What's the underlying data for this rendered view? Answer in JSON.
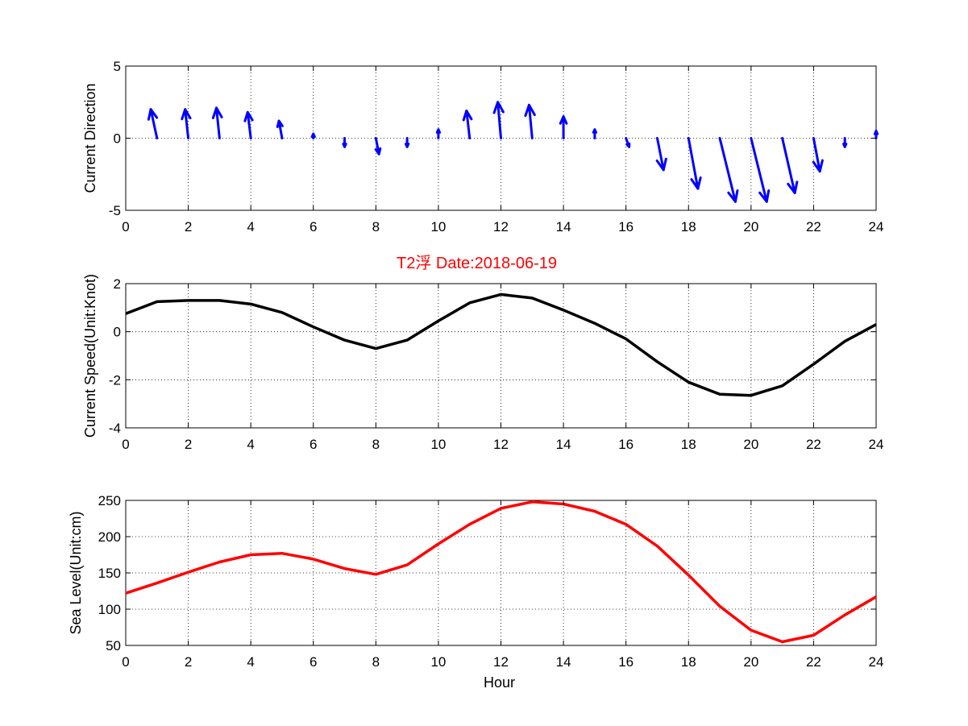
{
  "chart_data": [
    {
      "type": "quiver",
      "ylabel": "Current Direction",
      "xlabel": "",
      "xlim": [
        0,
        24
      ],
      "ylim": [
        -5,
        5
      ],
      "xticks": [
        0,
        2,
        4,
        6,
        8,
        10,
        12,
        14,
        16,
        18,
        20,
        22,
        24
      ],
      "yticks": [
        -5,
        0,
        5
      ],
      "grid": true,
      "color": "#0000ff",
      "points": [
        {
          "x": 1,
          "u": -0.2,
          "v": 2.0
        },
        {
          "x": 2,
          "u": -0.1,
          "v": 2.0
        },
        {
          "x": 3,
          "u": -0.1,
          "v": 2.1
        },
        {
          "x": 4,
          "u": -0.1,
          "v": 1.8
        },
        {
          "x": 5,
          "u": -0.1,
          "v": 1.2
        },
        {
          "x": 6,
          "u": 0.0,
          "v": 0.3
        },
        {
          "x": 7,
          "u": 0.0,
          "v": -0.6
        },
        {
          "x": 8,
          "u": 0.1,
          "v": -1.1
        },
        {
          "x": 9,
          "u": 0.0,
          "v": -0.6
        },
        {
          "x": 10,
          "u": 0.0,
          "v": 0.6
        },
        {
          "x": 11,
          "u": -0.1,
          "v": 1.9
        },
        {
          "x": 12,
          "u": -0.1,
          "v": 2.5
        },
        {
          "x": 13,
          "u": -0.1,
          "v": 2.3
        },
        {
          "x": 14,
          "u": 0.0,
          "v": 1.5
        },
        {
          "x": 15,
          "u": 0.0,
          "v": 0.6
        },
        {
          "x": 16,
          "u": 0.1,
          "v": -0.6
        },
        {
          "x": 17,
          "u": 0.2,
          "v": -2.2
        },
        {
          "x": 18,
          "u": 0.3,
          "v": -3.5
        },
        {
          "x": 19,
          "u": 0.5,
          "v": -4.4
        },
        {
          "x": 20,
          "u": 0.5,
          "v": -4.4
        },
        {
          "x": 21,
          "u": 0.4,
          "v": -3.8
        },
        {
          "x": 22,
          "u": 0.2,
          "v": -2.3
        },
        {
          "x": 23,
          "u": 0.0,
          "v": -0.6
        },
        {
          "x": 24,
          "u": 0.0,
          "v": 0.5
        }
      ]
    },
    {
      "type": "line",
      "title": "T2浮    Date:2018-06-19",
      "ylabel": "Current Speed(Unit:Knot)",
      "xlabel": "",
      "xlim": [
        0,
        24
      ],
      "ylim": [
        -4,
        2
      ],
      "xticks": [
        0,
        2,
        4,
        6,
        8,
        10,
        12,
        14,
        16,
        18,
        20,
        22,
        24
      ],
      "yticks": [
        -4,
        -2,
        0,
        2
      ],
      "grid": true,
      "color": "#000000",
      "x": [
        0,
        1,
        2,
        3,
        4,
        5,
        6,
        7,
        8,
        9,
        10,
        11,
        12,
        13,
        14,
        15,
        16,
        17,
        18,
        19,
        20,
        21,
        22,
        23,
        24
      ],
      "y": [
        0.75,
        1.25,
        1.3,
        1.3,
        1.15,
        0.8,
        0.2,
        -0.35,
        -0.7,
        -0.35,
        0.45,
        1.2,
        1.55,
        1.4,
        0.9,
        0.35,
        -0.3,
        -1.25,
        -2.1,
        -2.6,
        -2.65,
        -2.25,
        -1.35,
        -0.4,
        0.3
      ]
    },
    {
      "type": "line",
      "ylabel": "Sea Level(Unit:cm)",
      "xlabel": "Hour",
      "xlim": [
        0,
        24
      ],
      "ylim": [
        50,
        250
      ],
      "xticks": [
        0,
        2,
        4,
        6,
        8,
        10,
        12,
        14,
        16,
        18,
        20,
        22,
        24
      ],
      "yticks": [
        50,
        100,
        150,
        200,
        250
      ],
      "grid": true,
      "color": "#ff0000",
      "x": [
        0,
        1,
        2,
        3,
        4,
        5,
        6,
        7,
        8,
        9,
        10,
        11,
        12,
        13,
        14,
        15,
        16,
        17,
        18,
        19,
        20,
        21,
        22,
        23,
        24
      ],
      "y": [
        122,
        136,
        151,
        165,
        175,
        177,
        169,
        156,
        148,
        161,
        190,
        217,
        239,
        248,
        245,
        235,
        217,
        187,
        147,
        104,
        71,
        55,
        64,
        92,
        117
      ]
    }
  ]
}
